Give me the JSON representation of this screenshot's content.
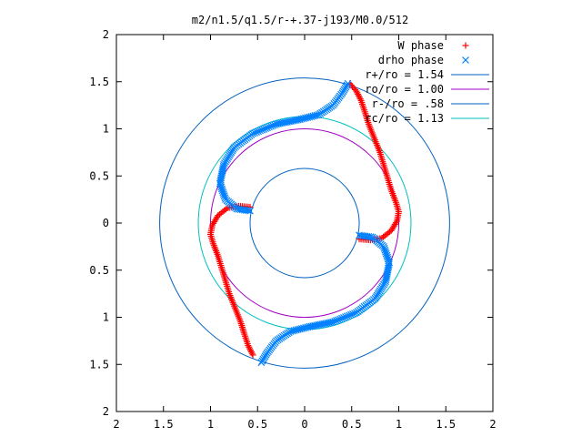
{
  "chart_data": {
    "type": "scatter",
    "title": "m2/n1.5/q1.5/r-+.37-j193/M0.0/512",
    "xlabel": "",
    "ylabel": "",
    "xlim": [
      -2,
      2
    ],
    "ylim": [
      -2,
      2
    ],
    "x_ticks": [
      -2,
      -1.5,
      -1,
      -0.5,
      0,
      0.5,
      1,
      1.5,
      2
    ],
    "y_ticks": [
      -2,
      -1.5,
      -1,
      -0.5,
      0,
      0.5,
      1,
      1.5,
      2
    ],
    "x_tick_labels": [
      "2",
      "1.5",
      "1",
      "0.5",
      "0",
      "0.5",
      "1",
      "1.5",
      "2"
    ],
    "y_tick_labels": [
      "2",
      "1.5",
      "1",
      "0.5",
      "0",
      "0.5",
      "1",
      "1.5",
      "2"
    ],
    "grid": false,
    "legend_position": "top-right",
    "series": [
      {
        "name": "W phase",
        "kind": "points",
        "marker": "plus",
        "color": "#ff0000",
        "arms": [
          [
            [
              0.48,
              1.48
            ],
            [
              0.55,
              1.4
            ],
            [
              0.6,
              1.3
            ],
            [
              0.64,
              1.18
            ],
            [
              0.68,
              1.05
            ],
            [
              0.74,
              0.9
            ],
            [
              0.8,
              0.75
            ],
            [
              0.86,
              0.55
            ],
            [
              0.92,
              0.35
            ],
            [
              0.97,
              0.22
            ],
            [
              1.0,
              0.12
            ],
            [
              0.98,
              0.02
            ],
            [
              0.92,
              -0.08
            ],
            [
              0.82,
              -0.16
            ],
            [
              0.7,
              -0.18
            ],
            [
              0.58,
              -0.17
            ]
          ],
          [
            [
              -0.58,
              0.17
            ],
            [
              -0.7,
              0.18
            ],
            [
              -0.82,
              0.16
            ],
            [
              -0.92,
              0.08
            ],
            [
              -0.98,
              -0.02
            ],
            [
              -1.0,
              -0.12
            ],
            [
              -0.97,
              -0.22
            ],
            [
              -0.92,
              -0.35
            ],
            [
              -0.86,
              -0.55
            ],
            [
              -0.8,
              -0.75
            ],
            [
              -0.74,
              -0.9
            ],
            [
              -0.68,
              -1.05
            ],
            [
              -0.64,
              -1.18
            ],
            [
              -0.6,
              -1.3
            ],
            [
              -0.55,
              -1.4
            ]
          ]
        ]
      },
      {
        "name": "drho phase",
        "kind": "points",
        "marker": "cross",
        "color": "#0080ff",
        "arms": [
          [
            [
              0.46,
              1.48
            ],
            [
              0.4,
              1.38
            ],
            [
              0.3,
              1.25
            ],
            [
              0.15,
              1.15
            ],
            [
              -0.05,
              1.1
            ],
            [
              -0.3,
              1.05
            ],
            [
              -0.55,
              0.95
            ],
            [
              -0.75,
              0.8
            ],
            [
              -0.86,
              0.62
            ],
            [
              -0.9,
              0.42
            ],
            [
              -0.84,
              0.25
            ],
            [
              -0.72,
              0.15
            ],
            [
              -0.58,
              0.13
            ]
          ],
          [
            [
              0.58,
              -0.13
            ],
            [
              0.72,
              -0.15
            ],
            [
              0.84,
              -0.25
            ],
            [
              0.9,
              -0.42
            ],
            [
              0.86,
              -0.62
            ],
            [
              0.75,
              -0.8
            ],
            [
              0.55,
              -0.95
            ],
            [
              0.3,
              -1.05
            ],
            [
              0.05,
              -1.1
            ],
            [
              -0.15,
              -1.15
            ],
            [
              -0.3,
              -1.25
            ],
            [
              -0.4,
              -1.38
            ],
            [
              -0.46,
              -1.48
            ]
          ]
        ]
      },
      {
        "name": "r+/ro = 1.54",
        "kind": "circle",
        "radius": 1.54,
        "color": "#0060c0"
      },
      {
        "name": "ro/ro = 1.00",
        "kind": "circle",
        "radius": 1.0,
        "color": "#a000c0"
      },
      {
        "name": "r-/ro = .58",
        "kind": "circle",
        "radius": 0.58,
        "color": "#0060c0"
      },
      {
        "name": "rc/ro = 1.13",
        "kind": "circle",
        "radius": 1.13,
        "color": "#00c0c0"
      }
    ]
  }
}
